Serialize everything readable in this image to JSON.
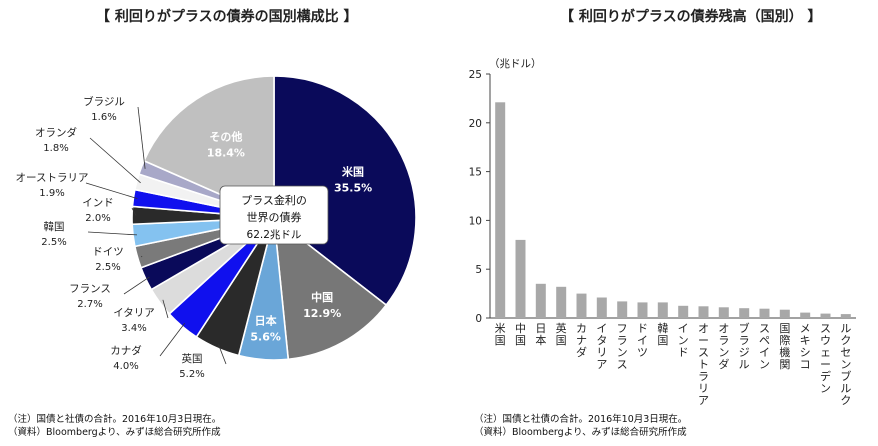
{
  "chart_data": [
    {
      "type": "pie",
      "title": "【 利回りがプラスの債券の国別構成比 】",
      "center_label": [
        "プラス金利の",
        "世界の債券",
        "62.2兆ドル"
      ],
      "slices": [
        {
          "label": "米国",
          "value": 35.5,
          "pct": "35.5%",
          "color": "#0a0a5a"
        },
        {
          "label": "中国",
          "value": 12.9,
          "pct": "12.9%",
          "color": "#777777"
        },
        {
          "label": "日本",
          "value": 5.6,
          "pct": "5.6%",
          "color": "#6aa6d8"
        },
        {
          "label": "英国",
          "value": 5.2,
          "pct": "5.2%",
          "color": "#2a2a2a"
        },
        {
          "label": "カナダ",
          "value": 4.0,
          "pct": "4.0%",
          "color": "#1010ee"
        },
        {
          "label": "イタリア",
          "value": 3.4,
          "pct": "3.4%",
          "color": "#dcdcdc"
        },
        {
          "label": "フランス",
          "value": 2.7,
          "pct": "2.7%",
          "color": "#0a0a5a"
        },
        {
          "label": "ドイツ",
          "value": 2.5,
          "pct": "2.5%",
          "color": "#7a7a7a"
        },
        {
          "label": "韓国",
          "value": 2.5,
          "pct": "2.5%",
          "color": "#84c2f0"
        },
        {
          "label": "インド",
          "value": 2.0,
          "pct": "2.0%",
          "color": "#2a2a2a"
        },
        {
          "label": "オーストラリア",
          "value": 1.9,
          "pct": "1.9%",
          "color": "#1010ee"
        },
        {
          "label": "オランダ",
          "value": 1.8,
          "pct": "1.8%",
          "color": "#f2f2f2"
        },
        {
          "label": "ブラジル",
          "value": 1.6,
          "pct": "1.6%",
          "color": "#a8a8c8"
        },
        {
          "label": "その他",
          "value": 18.4,
          "pct": "18.4%",
          "color": "#c0c0c0"
        }
      ],
      "notes": [
        "（注）国債と社債の合計。2016年10月3日現在。",
        "（資料）Bloombergより、みずほ総合研究所作成"
      ]
    },
    {
      "type": "bar",
      "title": "【 利回りがプラスの債券残高（国別） 】",
      "ylabel": "（兆ドル）",
      "ylim": [
        0,
        25
      ],
      "yticks": [
        "0",
        "5",
        "10",
        "15",
        "20",
        "25"
      ],
      "categories": [
        "米国",
        "中国",
        "日本",
        "英国",
        "カナダ",
        "イタリア",
        "フランス",
        "ドイツ",
        "韓国",
        "インド",
        "オーストラリア",
        "オランダ",
        "ブラジル",
        "スペイン",
        "国際機関",
        "メキシコ",
        "スウェーデン",
        "ルクセンブルク"
      ],
      "values": [
        22.1,
        8.0,
        3.5,
        3.2,
        2.5,
        2.1,
        1.7,
        1.6,
        1.6,
        1.25,
        1.2,
        1.1,
        1.0,
        0.95,
        0.85,
        0.55,
        0.45,
        0.4
      ],
      "bar_color": "#a8a8a8",
      "notes": [
        "（注）国債と社債の合計。2016年10月3日現在。",
        "（資料）Bloombergより、みずほ総合研究所作成"
      ]
    }
  ]
}
